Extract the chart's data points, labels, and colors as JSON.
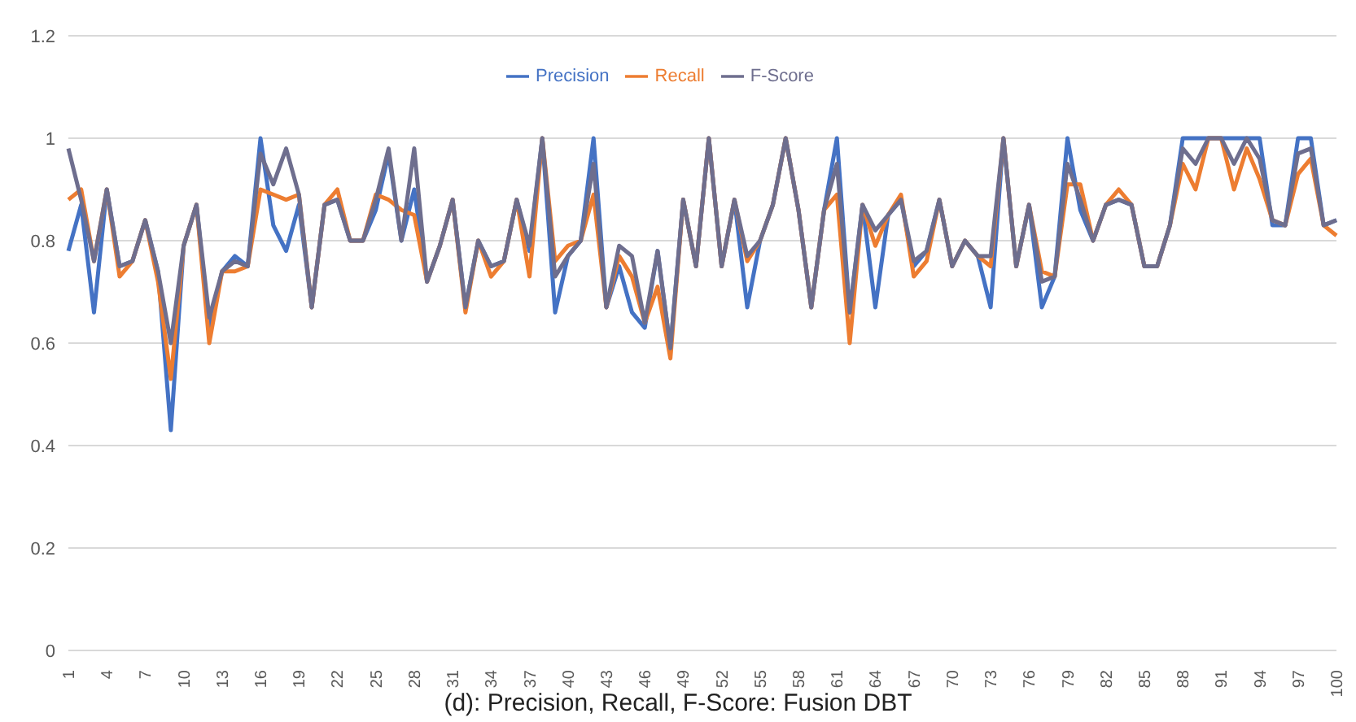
{
  "chart_data": {
    "type": "line",
    "categories": [
      "1",
      null,
      null,
      "4",
      null,
      null,
      "7",
      null,
      null,
      "10",
      null,
      null,
      "13",
      null,
      null,
      "16",
      null,
      null,
      "19",
      null,
      null,
      "22",
      null,
      null,
      "25",
      null,
      null,
      "28",
      null,
      null,
      "31",
      null,
      null,
      "34",
      null,
      null,
      "37",
      null,
      null,
      "40",
      null,
      null,
      "43",
      null,
      null,
      "46",
      null,
      null,
      "49",
      null,
      null,
      "52",
      null,
      null,
      "55",
      null,
      null,
      "58",
      null,
      null,
      "61",
      null,
      null,
      "64",
      null,
      null,
      "67",
      null,
      null,
      "70",
      null,
      null,
      "73",
      null,
      null,
      "76",
      null,
      null,
      "79",
      null,
      null,
      "82",
      null,
      null,
      "85",
      null,
      null,
      "88",
      null,
      null,
      "91",
      null,
      null,
      "94",
      null,
      null,
      "97",
      null,
      null,
      "100"
    ],
    "series": [
      {
        "name": "Precision",
        "color": "#4472c4",
        "values": [
          0.78,
          0.87,
          0.66,
          0.9,
          0.75,
          0.76,
          0.84,
          0.74,
          0.43,
          0.79,
          0.87,
          0.63,
          0.74,
          0.77,
          0.75,
          1.0,
          0.83,
          0.78,
          0.87,
          0.67,
          0.87,
          0.88,
          0.8,
          0.8,
          0.86,
          0.97,
          0.8,
          0.9,
          0.72,
          0.79,
          0.88,
          0.67,
          0.8,
          0.75,
          0.76,
          0.88,
          0.78,
          1.0,
          0.66,
          0.77,
          0.8,
          1.0,
          0.67,
          0.75,
          0.66,
          0.63,
          0.78,
          0.59,
          0.88,
          0.75,
          1.0,
          0.75,
          0.88,
          0.67,
          0.8,
          0.87,
          1.0,
          0.86,
          0.67,
          0.86,
          1.0,
          0.66,
          0.87,
          0.67,
          0.85,
          0.88,
          0.75,
          0.78,
          0.88,
          0.75,
          0.8,
          0.77,
          0.67,
          1.0,
          0.75,
          0.87,
          0.67,
          0.73,
          1.0,
          0.86,
          0.8,
          0.87,
          0.88,
          0.87,
          0.75,
          0.75,
          0.83,
          1.0,
          1.0,
          1.0,
          1.0,
          1.0,
          1.0,
          1.0,
          0.83,
          0.83,
          1.0,
          1.0,
          0.83,
          0.84
        ]
      },
      {
        "name": "Recall",
        "color": "#ed7d31",
        "values": [
          0.88,
          0.9,
          0.76,
          0.9,
          0.73,
          0.76,
          0.84,
          0.72,
          0.53,
          0.79,
          0.87,
          0.6,
          0.74,
          0.74,
          0.75,
          0.9,
          0.89,
          0.88,
          0.89,
          0.67,
          0.87,
          0.9,
          0.8,
          0.8,
          0.89,
          0.88,
          0.86,
          0.85,
          0.72,
          0.79,
          0.88,
          0.66,
          0.8,
          0.73,
          0.76,
          0.88,
          0.73,
          1.0,
          0.76,
          0.79,
          0.8,
          0.89,
          0.67,
          0.77,
          0.73,
          0.64,
          0.71,
          0.57,
          0.88,
          0.75,
          1.0,
          0.75,
          0.88,
          0.76,
          0.8,
          0.87,
          1.0,
          0.86,
          0.67,
          0.86,
          0.89,
          0.6,
          0.87,
          0.79,
          0.85,
          0.89,
          0.73,
          0.76,
          0.88,
          0.75,
          0.8,
          0.77,
          0.75,
          1.0,
          0.75,
          0.87,
          0.74,
          0.73,
          0.91,
          0.91,
          0.8,
          0.87,
          0.9,
          0.87,
          0.75,
          0.75,
          0.83,
          0.95,
          0.9,
          1.0,
          1.0,
          0.9,
          0.98,
          0.92,
          0.84,
          0.83,
          0.93,
          0.96,
          0.83,
          0.81
        ]
      },
      {
        "name": "F-Score",
        "color": "#6e6e8e",
        "values": [
          0.98,
          0.88,
          0.76,
          0.9,
          0.75,
          0.76,
          0.84,
          0.74,
          0.6,
          0.79,
          0.87,
          0.65,
          0.74,
          0.76,
          0.75,
          0.97,
          0.91,
          0.98,
          0.89,
          0.67,
          0.87,
          0.88,
          0.8,
          0.8,
          0.88,
          0.98,
          0.8,
          0.98,
          0.72,
          0.79,
          0.88,
          0.67,
          0.8,
          0.75,
          0.76,
          0.88,
          0.79,
          1.0,
          0.73,
          0.77,
          0.8,
          0.95,
          0.67,
          0.79,
          0.77,
          0.64,
          0.78,
          0.59,
          0.88,
          0.75,
          1.0,
          0.75,
          0.88,
          0.77,
          0.8,
          0.87,
          1.0,
          0.86,
          0.67,
          0.86,
          0.95,
          0.66,
          0.87,
          0.82,
          0.85,
          0.88,
          0.76,
          0.78,
          0.88,
          0.75,
          0.8,
          0.77,
          0.77,
          1.0,
          0.75,
          0.87,
          0.72,
          0.73,
          0.95,
          0.88,
          0.8,
          0.87,
          0.88,
          0.87,
          0.75,
          0.75,
          0.83,
          0.98,
          0.95,
          1.0,
          1.0,
          0.95,
          1.0,
          0.96,
          0.84,
          0.83,
          0.97,
          0.98,
          0.83,
          0.84
        ]
      }
    ],
    "ylim": [
      0,
      1.2
    ],
    "yticks": [
      0,
      0.2,
      0.4,
      0.6,
      0.8,
      1,
      1.2
    ],
    "grid": "y",
    "legend": "top",
    "marker": "none",
    "line_style": "solid",
    "annotations": [
      "(d): Precision, Recall, F-Score: Fusion DBT"
    ]
  }
}
